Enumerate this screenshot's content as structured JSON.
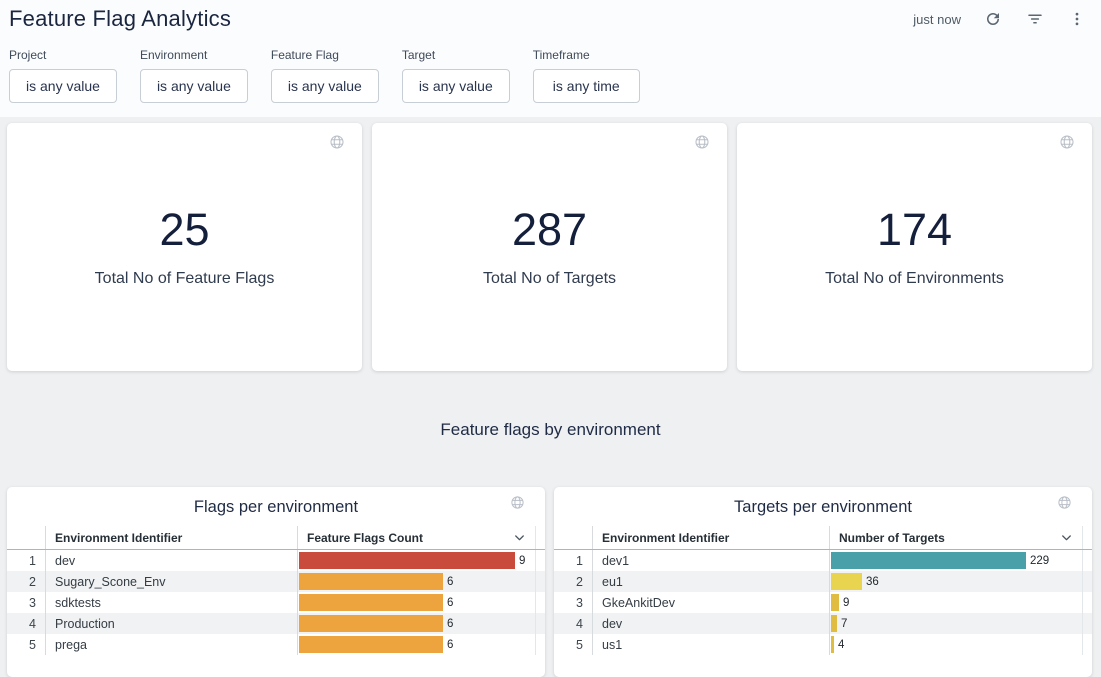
{
  "header": {
    "title": "Feature Flag Analytics",
    "updated": "just now"
  },
  "filters": [
    {
      "label": "Project",
      "value": "is any value"
    },
    {
      "label": "Environment",
      "value": "is any value"
    },
    {
      "label": "Feature Flag",
      "value": "is any value"
    },
    {
      "label": "Target",
      "value": "is any value"
    },
    {
      "label": "Timeframe",
      "value": "is any time"
    }
  ],
  "stats": [
    {
      "value": "25",
      "label": "Total No of Feature Flags"
    },
    {
      "value": "287",
      "label": "Total No of Targets"
    },
    {
      "value": "174",
      "label": "Total No of Environments"
    }
  ],
  "section_title": "Feature flags by environment",
  "chart_data": [
    {
      "type": "table",
      "title": "Flags per environment",
      "columns": [
        "Environment Identifier",
        "Feature Flags Count"
      ],
      "max_value": 9,
      "rows": [
        {
          "rank": 1,
          "env": "dev",
          "value": 9,
          "color": "#c84b3c"
        },
        {
          "rank": 2,
          "env": "Sugary_Scone_Env",
          "value": 6,
          "color": "#eda43f"
        },
        {
          "rank": 3,
          "env": "sdktests",
          "value": 6,
          "color": "#eda43f"
        },
        {
          "rank": 4,
          "env": "Production",
          "value": 6,
          "color": "#eda43f"
        },
        {
          "rank": 5,
          "env": "prega",
          "value": 6,
          "color": "#eda43f"
        }
      ]
    },
    {
      "type": "table",
      "title": "Targets per environment",
      "columns": [
        "Environment Identifier",
        "Number of Targets"
      ],
      "max_value": 229,
      "rows": [
        {
          "rank": 1,
          "env": "dev1",
          "value": 229,
          "color": "#4aa0a8"
        },
        {
          "rank": 2,
          "env": "eu1",
          "value": 36,
          "color": "#e8d44e"
        },
        {
          "rank": 3,
          "env": "GkeAnkitDev",
          "value": 9,
          "color": "#e0bd41"
        },
        {
          "rank": 4,
          "env": "dev",
          "value": 7,
          "color": "#e0bd41"
        },
        {
          "rank": 5,
          "env": "us1",
          "value": 4,
          "color": "#e0bd41"
        }
      ]
    }
  ]
}
